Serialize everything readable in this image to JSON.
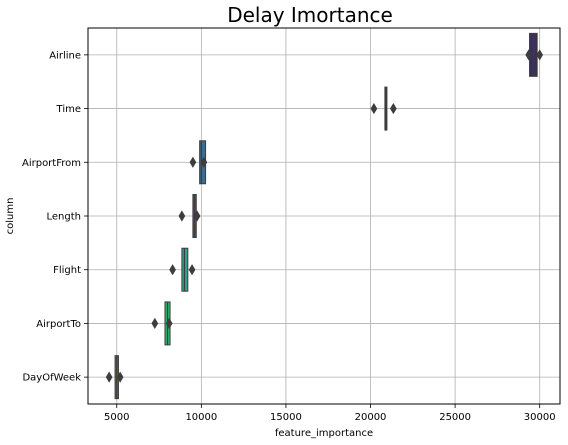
{
  "chart_data": {
    "type": "boxplot",
    "orientation": "horizontal",
    "title": "Delay Imortance",
    "xlabel": "feature_importance",
    "ylabel": "column",
    "xlim": [
      3300,
      31200
    ],
    "xticks": [
      5000,
      10000,
      15000,
      20000,
      25000,
      30000
    ],
    "xtick_labels": [
      "5000",
      "10000",
      "15000",
      "20000",
      "25000",
      "30000"
    ],
    "grid": true,
    "categories": [
      "Airline",
      "Time",
      "AirportFrom",
      "Length",
      "Flight",
      "AirportTo",
      "DayOfWeek"
    ],
    "boxes": [
      {
        "label": "Airline",
        "q1": 29400,
        "median": 29650,
        "q3": 29850,
        "whisker_low": 29400,
        "whisker_high": 29850,
        "outliers": [
          29350,
          30000
        ],
        "color": "#3b2e5a"
      },
      {
        "label": "Time",
        "q1": 20850,
        "median": 20900,
        "q3": 20950,
        "whisker_low": 20850,
        "whisker_high": 20950,
        "outliers": [
          20200,
          21350
        ],
        "color": "#3a3a55"
      },
      {
        "label": "AirportFrom",
        "q1": 9900,
        "median": 10000,
        "q3": 10250,
        "whisker_low": 9900,
        "whisker_high": 10250,
        "outliers": [
          9500,
          10150
        ],
        "color": "#3d6c8c"
      },
      {
        "label": "Length",
        "q1": 9500,
        "median": 9600,
        "q3": 9700,
        "whisker_low": 9500,
        "whisker_high": 9700,
        "outliers": [
          8850,
          9750
        ],
        "color": "#3e5b6e"
      },
      {
        "label": "Flight",
        "q1": 8850,
        "median": 9000,
        "q3": 9200,
        "whisker_low": 8850,
        "whisker_high": 9200,
        "outliers": [
          8300,
          9450
        ],
        "color": "#2ea48c"
      },
      {
        "label": "AirportTo",
        "q1": 7850,
        "median": 8000,
        "q3": 8150,
        "whisker_low": 7850,
        "whisker_high": 8150,
        "outliers": [
          7250,
          8100
        ],
        "color": "#2db36f"
      },
      {
        "label": "DayOfWeek",
        "q1": 4900,
        "median": 5000,
        "q3": 5100,
        "whisker_low": 4900,
        "whisker_high": 5100,
        "outliers": [
          4550,
          5200
        ],
        "color": "#5f6e4a"
      }
    ]
  }
}
